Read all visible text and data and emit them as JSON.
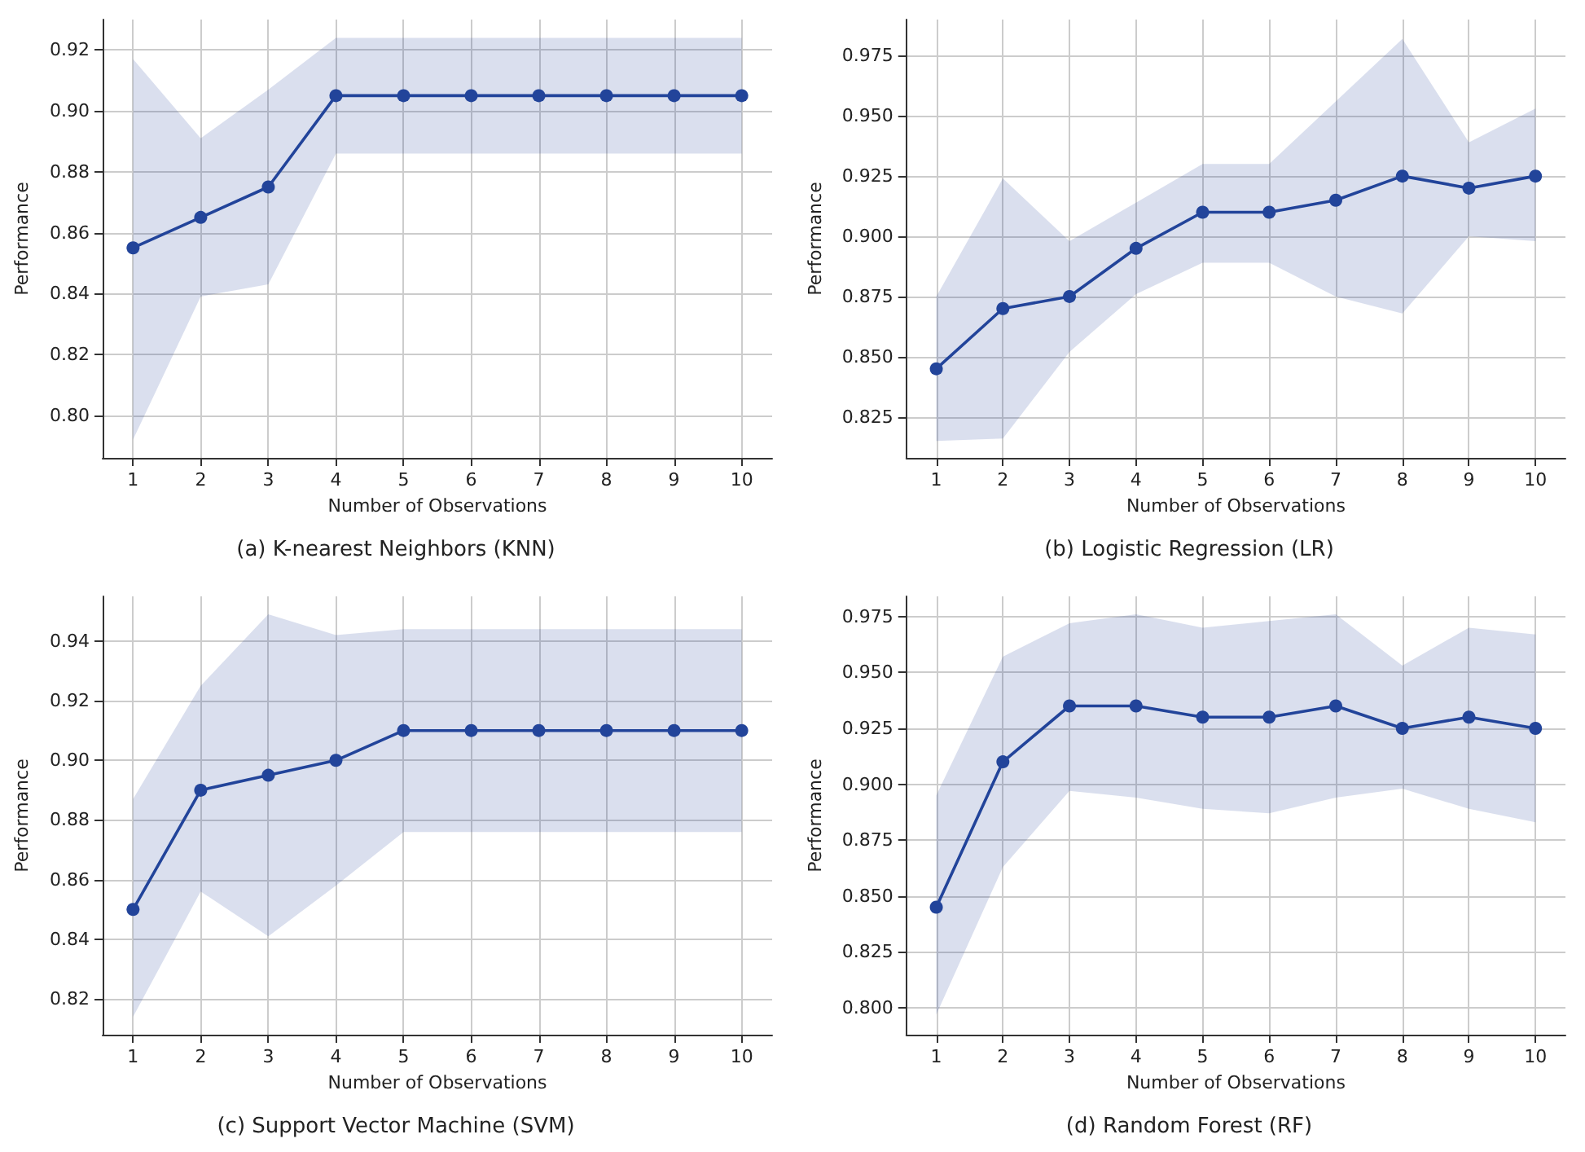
{
  "chart_data": [
    {
      "type": "line",
      "title": "(a) K-nearest Neighbors (KNN)",
      "xlabel": "Number of Observations",
      "ylabel": "Performance",
      "x": [
        1,
        2,
        3,
        4,
        5,
        6,
        7,
        8,
        9,
        10
      ],
      "xlim": [
        0.55,
        10.45
      ],
      "xticks": [
        1,
        2,
        3,
        4,
        5,
        6,
        7,
        8,
        9,
        10
      ],
      "ylim": [
        0.786,
        0.93
      ],
      "yticks": [
        {
          "value": 0.8,
          "label": "0.80"
        },
        {
          "value": 0.82,
          "label": "0.82"
        },
        {
          "value": 0.84,
          "label": "0.84"
        },
        {
          "value": 0.86,
          "label": "0.86"
        },
        {
          "value": 0.88,
          "label": "0.88"
        },
        {
          "value": 0.9,
          "label": "0.90"
        },
        {
          "value": 0.92,
          "label": "0.92"
        }
      ],
      "grid": true,
      "marker": "circle",
      "line_style": "solid",
      "series": [
        {
          "color": "#22449a",
          "values": [
            0.855,
            0.865,
            0.875,
            0.905,
            0.905,
            0.905,
            0.905,
            0.905,
            0.905,
            0.905
          ],
          "lower": [
            0.792,
            0.839,
            0.843,
            0.886,
            0.886,
            0.886,
            0.886,
            0.886,
            0.886,
            0.886
          ],
          "upper": [
            0.917,
            0.891,
            0.907,
            0.924,
            0.924,
            0.924,
            0.924,
            0.924,
            0.924,
            0.924
          ]
        }
      ]
    },
    {
      "type": "line",
      "title": "(b) Logistic Regression (LR)",
      "xlabel": "Number of Observations",
      "ylabel": "Performance",
      "x": [
        1,
        2,
        3,
        4,
        5,
        6,
        7,
        8,
        9,
        10
      ],
      "xlim": [
        0.55,
        10.45
      ],
      "xticks": [
        1,
        2,
        3,
        4,
        5,
        6,
        7,
        8,
        9,
        10
      ],
      "ylim": [
        0.808,
        0.99
      ],
      "yticks": [
        0.825,
        {
          "value": 0.85,
          "label": "0.850"
        },
        0.875,
        {
          "value": 0.9,
          "label": "0.900"
        },
        0.925,
        {
          "value": 0.95,
          "label": "0.950"
        },
        0.975
      ],
      "grid": true,
      "marker": "circle",
      "line_style": "solid",
      "series": [
        {
          "color": "#22449a",
          "values": [
            0.845,
            0.87,
            0.875,
            0.895,
            0.91,
            0.91,
            0.915,
            0.925,
            0.92,
            0.925
          ],
          "lower": [
            0.815,
            0.816,
            0.852,
            0.876,
            0.889,
            0.889,
            0.875,
            0.868,
            0.9,
            0.898
          ],
          "upper": [
            0.875,
            0.924,
            0.898,
            0.914,
            0.93,
            0.93,
            0.956,
            0.982,
            0.939,
            0.953
          ]
        }
      ]
    },
    {
      "type": "line",
      "title": "(c) Support Vector Machine (SVM)",
      "xlabel": "Number of Observations",
      "ylabel": "Performance",
      "x": [
        1,
        2,
        3,
        4,
        5,
        6,
        7,
        8,
        9,
        10
      ],
      "xlim": [
        0.55,
        10.45
      ],
      "xticks": [
        1,
        2,
        3,
        4,
        5,
        6,
        7,
        8,
        9,
        10
      ],
      "ylim": [
        0.808,
        0.955
      ],
      "yticks": [
        0.82,
        0.84,
        0.86,
        0.88,
        {
          "value": 0.9,
          "label": "0.90"
        },
        0.92,
        0.94
      ],
      "grid": true,
      "marker": "circle",
      "line_style": "solid",
      "series": [
        {
          "color": "#22449a",
          "values": [
            0.85,
            0.89,
            0.895,
            0.9,
            0.91,
            0.91,
            0.91,
            0.91,
            0.91,
            0.91
          ],
          "lower": [
            0.814,
            0.856,
            0.841,
            0.858,
            0.876,
            0.876,
            0.876,
            0.876,
            0.876,
            0.876
          ],
          "upper": [
            0.887,
            0.925,
            0.949,
            0.942,
            0.944,
            0.944,
            0.944,
            0.944,
            0.944,
            0.944
          ]
        }
      ]
    },
    {
      "type": "line",
      "title": "(d) Random Forest (RF)",
      "xlabel": "Number of Observations",
      "ylabel": "Performance",
      "x": [
        1,
        2,
        3,
        4,
        5,
        6,
        7,
        8,
        9,
        10
      ],
      "xlim": [
        0.55,
        10.45
      ],
      "xticks": [
        1,
        2,
        3,
        4,
        5,
        6,
        7,
        8,
        9,
        10
      ],
      "ylim": [
        0.788,
        0.984
      ],
      "yticks": [
        {
          "value": 0.8,
          "label": "0.800"
        },
        0.825,
        {
          "value": 0.85,
          "label": "0.850"
        },
        0.875,
        {
          "value": 0.9,
          "label": "0.900"
        },
        0.925,
        {
          "value": 0.95,
          "label": "0.950"
        },
        0.975
      ],
      "grid": true,
      "marker": "circle",
      "line_style": "solid",
      "series": [
        {
          "color": "#22449a",
          "values": [
            0.845,
            0.91,
            0.935,
            0.935,
            0.93,
            0.93,
            0.935,
            0.925,
            0.93,
            0.925
          ],
          "lower": [
            0.797,
            0.863,
            0.897,
            0.894,
            0.889,
            0.887,
            0.894,
            0.898,
            0.889,
            0.883
          ],
          "upper": [
            0.895,
            0.957,
            0.972,
            0.976,
            0.97,
            0.973,
            0.976,
            0.953,
            0.97,
            0.967
          ]
        }
      ]
    }
  ]
}
